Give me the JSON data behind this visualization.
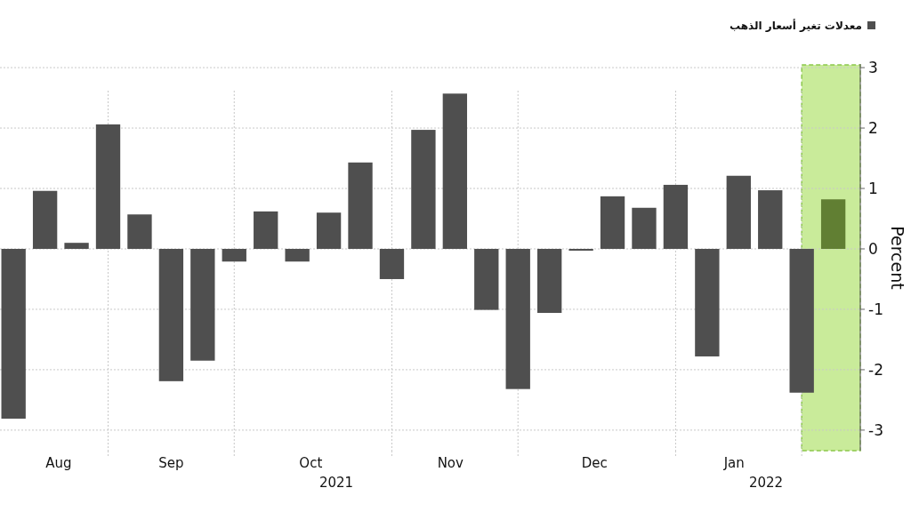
{
  "chart_data": {
    "type": "bar",
    "ylabel": "Percent",
    "x": [
      "2021-08-13",
      "2021-08-20",
      "2021-08-27",
      "2021-09-03",
      "2021-09-10",
      "2021-09-17",
      "2021-09-24",
      "2021-10-01",
      "2021-10-08",
      "2021-10-15",
      "2021-10-22",
      "2021-10-29",
      "2021-11-05",
      "2021-11-12",
      "2021-11-19",
      "2021-11-26",
      "2021-12-03",
      "2021-12-10",
      "2021-12-17",
      "2021-12-24",
      "2021-12-31",
      "2022-01-07",
      "2022-01-14",
      "2022-01-21",
      "2022-01-28",
      "2022-02-04",
      "2022-02-11"
    ],
    "series": [
      {
        "name": "معدلات تغير أسعار الذهب",
        "color": "#4f4f4f",
        "values": [
          -2.81,
          0.96,
          0.1,
          2.06,
          0.57,
          -2.19,
          -1.85,
          -0.21,
          0.62,
          -0.21,
          0.6,
          1.43,
          -0.5,
          1.97,
          2.57,
          -1.01,
          -2.32,
          -1.06,
          -0.03,
          0.87,
          0.68,
          1.06,
          -1.78,
          1.21,
          0.97,
          -2.38,
          0.82
        ],
        "colors": [
          "#4f4f4f",
          "#4f4f4f",
          "#4f4f4f",
          "#4f4f4f",
          "#4f4f4f",
          "#4f4f4f",
          "#4f4f4f",
          "#4f4f4f",
          "#4f4f4f",
          "#4f4f4f",
          "#4f4f4f",
          "#4f4f4f",
          "#4f4f4f",
          "#4f4f4f",
          "#4f4f4f",
          "#4f4f4f",
          "#4f4f4f",
          "#4f4f4f",
          "#4f4f4f",
          "#4f4f4f",
          "#4f4f4f",
          "#4f4f4f",
          "#4f4f4f",
          "#4f4f4f",
          "#4f4f4f",
          "#4f4f4f",
          "#617f33"
        ]
      }
    ],
    "xlim": [
      "2021-08-10",
      "2022-02-17"
    ],
    "xticks": [
      {
        "value": "2021-08-23",
        "label": "Aug"
      },
      {
        "value": "2021-09-17",
        "label": "Sep"
      },
      {
        "value": "2021-10-18",
        "label": "Oct"
      },
      {
        "value": "2021-11-18",
        "label": "Nov"
      },
      {
        "value": "2021-12-20",
        "label": "Dec"
      },
      {
        "value": "2022-01-20",
        "label": "Jan"
      },
      {
        "value": "2021-09-03",
        "label": null
      },
      {
        "value": "2021-10-01",
        "label": null
      },
      {
        "value": "2021-11-05",
        "label": null
      },
      {
        "value": "2021-12-03",
        "label": null
      },
      {
        "value": "2022-01-07",
        "label": null
      },
      {
        "value": "2022-02-04",
        "label": null
      }
    ],
    "ylim": [
      -3.34,
      3.06
    ],
    "yticks": [
      -3,
      -2,
      -1,
      0,
      1,
      2,
      3
    ],
    "annotations": [
      "2021",
      "2022"
    ],
    "bands": [
      {
        "axis": "x",
        "from": "2022-02-04",
        "to": "2022-02-17",
        "color": "#c9eb9a"
      }
    ],
    "grid": true,
    "legend": "top right"
  }
}
